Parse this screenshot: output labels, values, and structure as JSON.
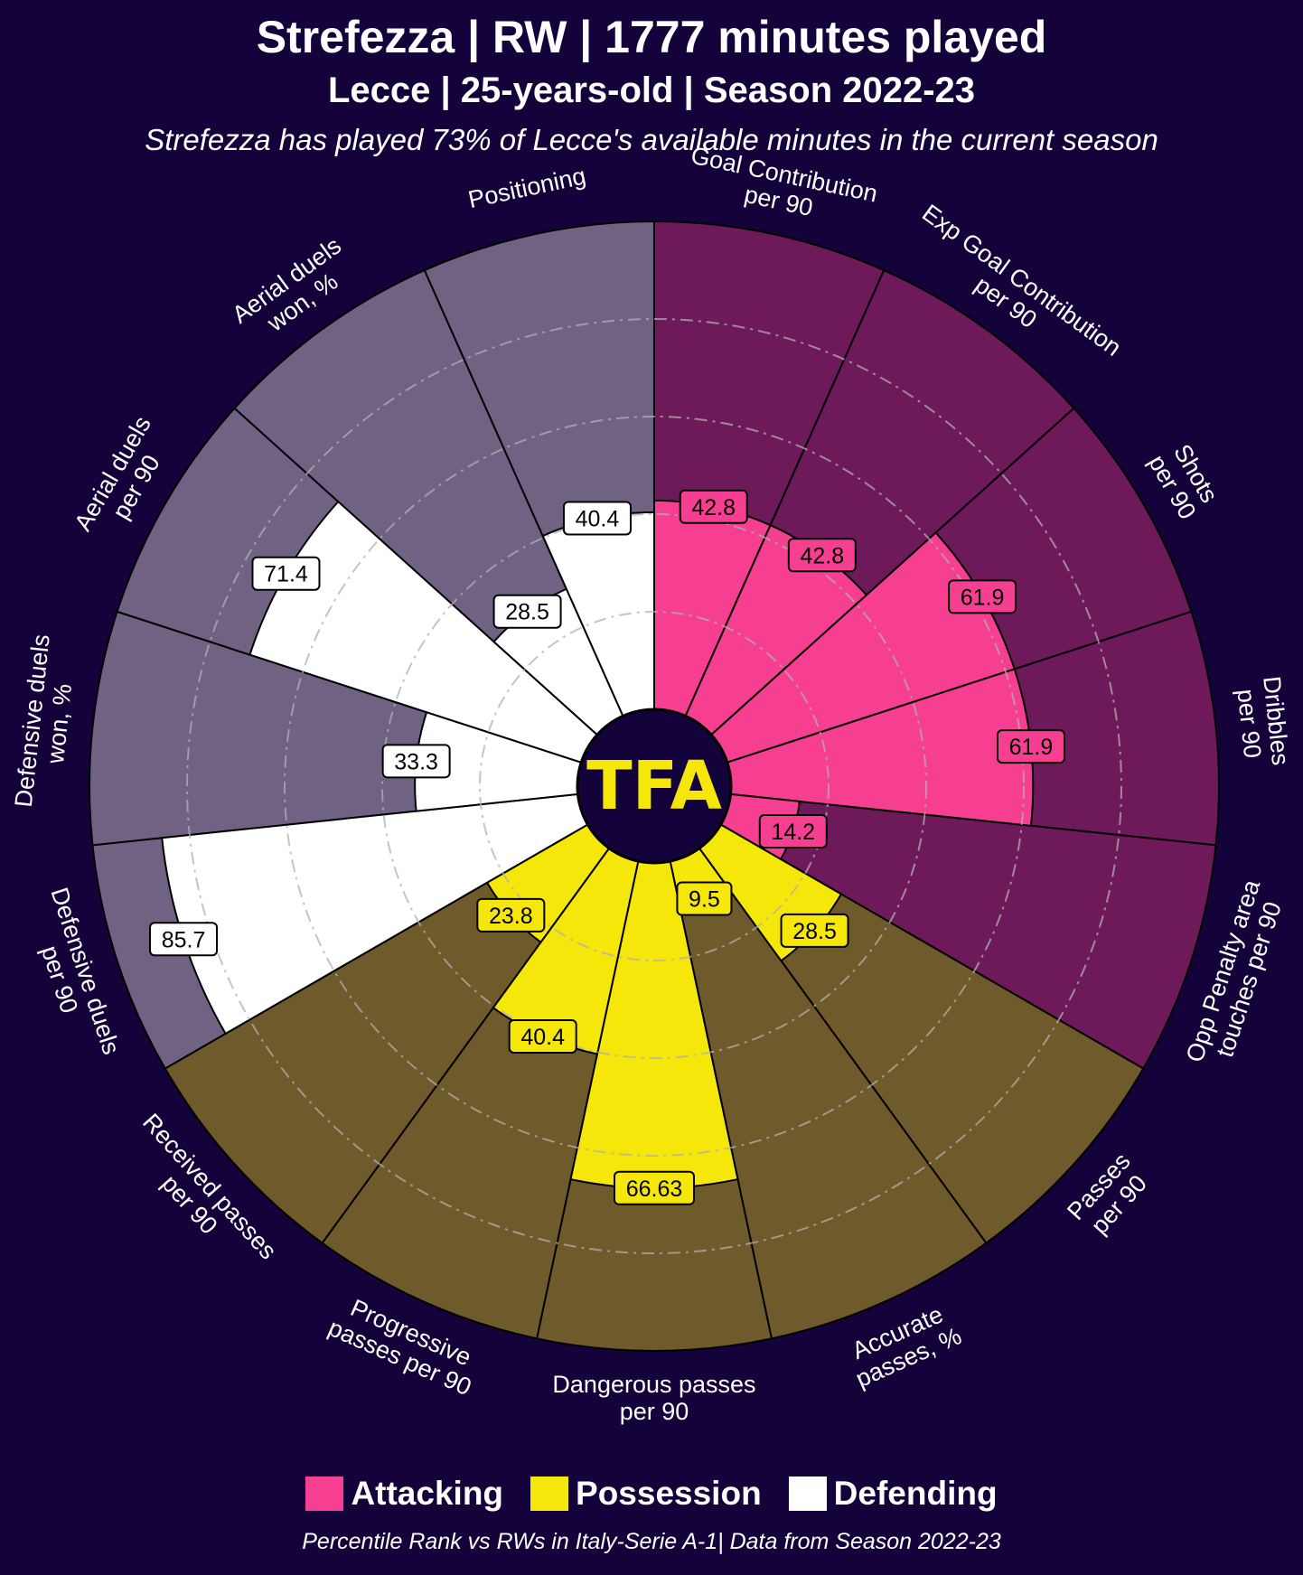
{
  "header": {
    "title": "Strefezza | RW | 1777 minutes played",
    "subtitle": "Lecce | 25-years-old | Season 2022-23",
    "note": "Strefezza has played 73% of Lecce's available minutes in the current season"
  },
  "logo": {
    "text": "TFA",
    "color": "#f5e70a"
  },
  "colors": {
    "background": "#14023a",
    "attacking": "#f73f91",
    "attacking_bg": "#6e1a5a",
    "possession": "#f5e70a",
    "possession_bg": "#6e5a2a",
    "defending": "#ffffff",
    "defending_bg": "#706283"
  },
  "legend": [
    {
      "label": "Attacking",
      "color": "#f73f91"
    },
    {
      "label": "Possession",
      "color": "#f5e70a"
    },
    {
      "label": "Defending",
      "color": "#ffffff"
    }
  ],
  "footer": "Percentile Rank vs RWs in Italy-Serie A-1| Data from Season 2022-23",
  "chart_data": {
    "type": "pizza",
    "title": "Strefezza | RW | 1777 minutes played",
    "range": [
      0,
      100
    ],
    "grid": true,
    "legend_placement": "bottom",
    "categories": [
      {
        "name": "Attacking",
        "color": "#f73f91"
      },
      {
        "name": "Possession",
        "color": "#f5e70a"
      },
      {
        "name": "Defending",
        "color": "#ffffff"
      }
    ],
    "params": [
      {
        "label": [
          "Goal Contribution",
          "per 90"
        ],
        "value": 42.8,
        "display": "42.8",
        "category": "Attacking"
      },
      {
        "label": [
          "Exp Goal Contribution",
          "per 90"
        ],
        "value": 42.8,
        "display": "42.8",
        "category": "Attacking"
      },
      {
        "label": [
          "Shots",
          "per 90"
        ],
        "value": 61.9,
        "display": "61.9",
        "category": "Attacking"
      },
      {
        "label": [
          "Dribbles",
          "per 90"
        ],
        "value": 61.9,
        "display": "61.9",
        "category": "Attacking"
      },
      {
        "label": [
          "Opp Penalty area",
          "touches per 90"
        ],
        "value": 14.2,
        "display": "14.2",
        "category": "Attacking"
      },
      {
        "label": [
          "Passes",
          "per 90"
        ],
        "value": 28.5,
        "display": "28.5",
        "category": "Possession"
      },
      {
        "label": [
          "Accurate",
          "passes, %"
        ],
        "value": 9.5,
        "display": "9.5",
        "category": "Possession"
      },
      {
        "label": [
          "Dangerous passes",
          "per 90"
        ],
        "value": 66.63,
        "display": "66.63",
        "category": "Possession"
      },
      {
        "label": [
          "Progressive",
          "passes per 90"
        ],
        "value": 40.4,
        "display": "40.4",
        "category": "Possession"
      },
      {
        "label": [
          "Received passes",
          "per 90"
        ],
        "value": 23.8,
        "display": "23.8",
        "category": "Possession"
      },
      {
        "label": [
          "Defensive duels",
          "per 90"
        ],
        "value": 85.7,
        "display": "85.7",
        "category": "Defending"
      },
      {
        "label": [
          "Defensive duels",
          "won, %"
        ],
        "value": 33.3,
        "display": "33.3",
        "category": "Defending"
      },
      {
        "label": [
          "Aerial duels",
          "per 90"
        ],
        "value": 71.4,
        "display": "71.4",
        "category": "Defending"
      },
      {
        "label": [
          "Aerial duels",
          "won, %"
        ],
        "value": 28.5,
        "display": "28.5",
        "category": "Defending"
      },
      {
        "label": [
          "Positioning"
        ],
        "value": 40.4,
        "display": "40.4",
        "category": "Defending"
      }
    ]
  }
}
